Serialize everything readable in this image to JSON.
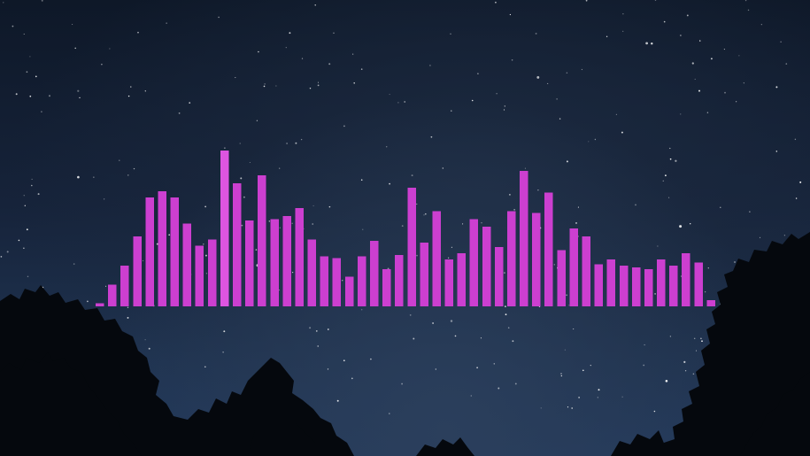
{
  "colors": {
    "bar": "#cc3fd0",
    "bar_highlight": "#dd55e0",
    "sky_top": "#0e1828",
    "sky_bottom": "#22385a",
    "tree": "#05080d",
    "star": "#ffffff"
  },
  "icons": {
    "background": "night-sky-stars-image",
    "foliage": "tree-silhouette-image"
  },
  "visualizer": {
    "bar_count": 50,
    "levels": [
      0.02,
      0.14,
      0.26,
      0.45,
      0.7,
      0.74,
      0.7,
      0.53,
      0.39,
      0.43,
      1.0,
      0.79,
      0.55,
      0.84,
      0.56,
      0.58,
      0.63,
      0.43,
      0.32,
      0.31,
      0.19,
      0.32,
      0.42,
      0.24,
      0.33,
      0.76,
      0.41,
      0.61,
      0.3,
      0.34,
      0.56,
      0.51,
      0.38,
      0.61,
      0.87,
      0.6,
      0.73,
      0.36,
      0.5,
      0.45,
      0.27,
      0.3,
      0.26,
      0.25,
      0.24,
      0.3,
      0.26,
      0.34,
      0.28,
      0.04
    ]
  }
}
